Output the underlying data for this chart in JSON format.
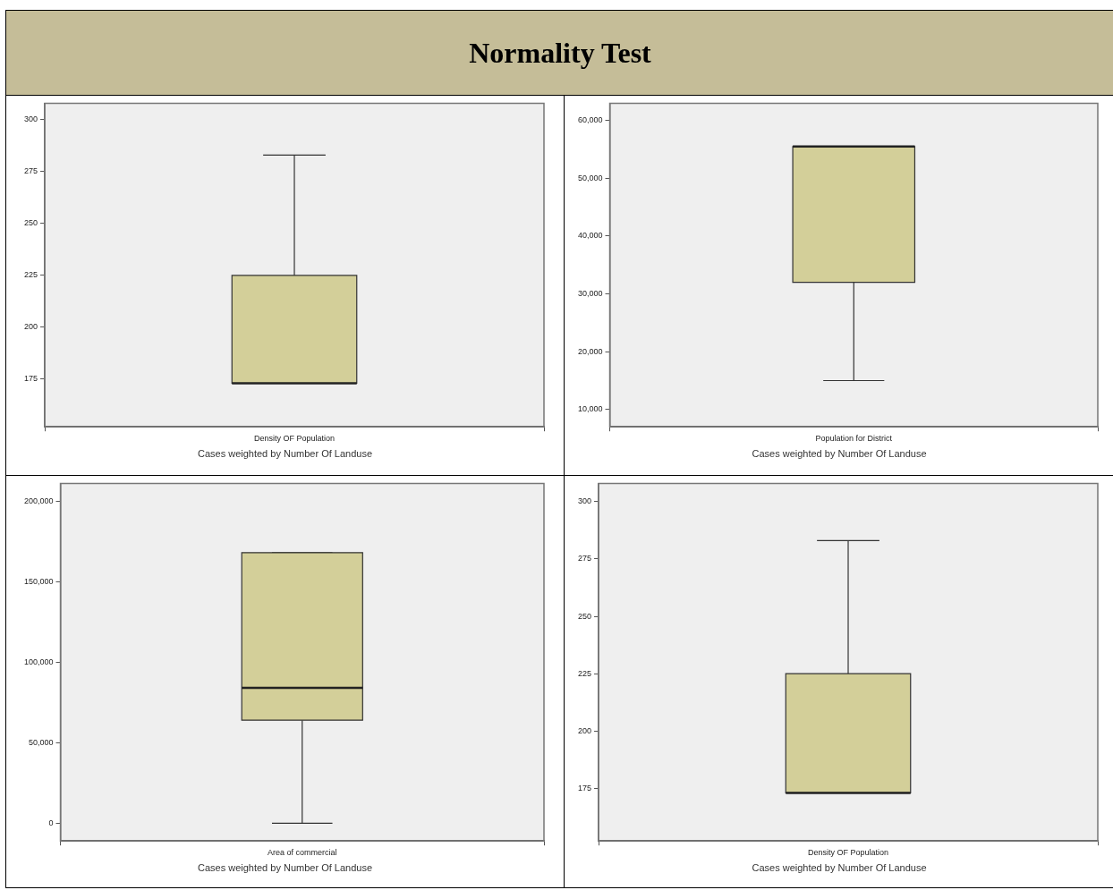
{
  "chart_data": [
    {
      "type": "box",
      "title": "Normality Test",
      "categories": [
        "Density OF Population"
      ],
      "color": "#d3cf99",
      "boxes": [
        {
          "low": 173,
          "q1": 173,
          "median": 173,
          "q3": 225,
          "high": 283
        }
      ],
      "ylim": [
        152,
        308
      ],
      "yticks": [
        175,
        200,
        225,
        250,
        275,
        300
      ],
      "annotations": [
        "Cases weighted by Number Of Landuse"
      ],
      "grid": false
    },
    {
      "type": "box",
      "categories": [
        "Population for District"
      ],
      "color": "#d3cf99",
      "boxes": [
        {
          "low": 15000,
          "q1": 32000,
          "median": 55500,
          "q3": 55500,
          "high": 55500
        }
      ],
      "ylim": [
        7000,
        63000
      ],
      "yticks": [
        {
          "value": 10000,
          "label": "10,000"
        },
        {
          "value": 20000,
          "label": "20,000"
        },
        {
          "value": 30000,
          "label": "30,000"
        },
        {
          "value": 40000,
          "label": "40,000"
        },
        {
          "value": 50000,
          "label": "50,000"
        },
        {
          "value": 60000,
          "label": "60,000"
        }
      ],
      "annotations": [
        "Cases weighted by Number Of Landuse"
      ],
      "grid": false
    },
    {
      "type": "box",
      "categories": [
        "Area of commercial"
      ],
      "color": "#d3cf99",
      "boxes": [
        {
          "low": 0,
          "q1": 64000,
          "median": 84000,
          "q3": 168000,
          "high": 168000
        }
      ],
      "ylim": [
        -11000,
        211000
      ],
      "yticks": [
        0,
        {
          "value": 50000,
          "label": "50,000"
        },
        {
          "value": 100000,
          "label": "100,000"
        },
        {
          "value": 150000,
          "label": "150,000"
        },
        {
          "value": 200000,
          "label": "200,000"
        }
      ],
      "annotations": [
        "Cases weighted by Number Of Landuse"
      ],
      "grid": false
    },
    {
      "type": "box",
      "categories": [
        "Density OF Population"
      ],
      "color": "#d3cf99",
      "boxes": [
        {
          "low": 173,
          "q1": 173,
          "median": 173,
          "q3": 225,
          "high": 283
        }
      ],
      "ylim": [
        152,
        308
      ],
      "yticks": [
        175,
        200,
        225,
        250,
        275,
        300
      ],
      "annotations": [
        "Cases weighted by Number Of Landuse"
      ],
      "grid": false
    }
  ]
}
